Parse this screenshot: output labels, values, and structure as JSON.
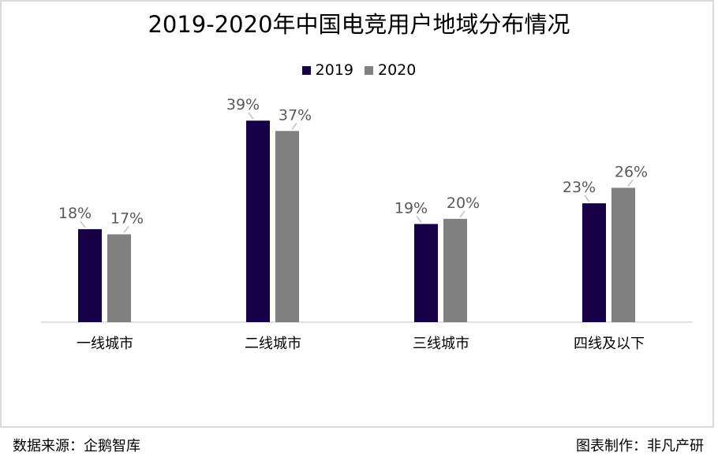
{
  "chart_data": {
    "type": "bar",
    "title": "2019-2020年中国电竞用户地域分布情况",
    "categories": [
      "一线城市",
      "二线城市",
      "三线城市",
      "四线及以下"
    ],
    "series": [
      {
        "name": "2019",
        "values": [
          18,
          39,
          19,
          23
        ],
        "labels": [
          "18%",
          "39%",
          "19%",
          "23%"
        ],
        "color": "#170048"
      },
      {
        "name": "2020",
        "values": [
          17,
          37,
          20,
          26
        ],
        "labels": [
          "17%",
          "37%",
          "20%",
          "26%"
        ],
        "color": "#808080"
      }
    ],
    "ylim": [
      0,
      40
    ],
    "grid": false,
    "legend": "top"
  },
  "footer": {
    "source": "数据来源：企鹅智库",
    "credit": "图表制作：非凡产研"
  }
}
